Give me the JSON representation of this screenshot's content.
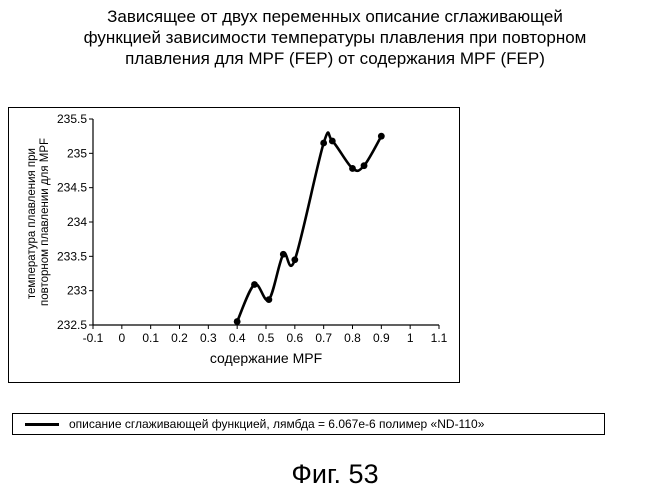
{
  "title_lines": [
    "Зависящее от двух переменных описание сглаживающей",
    "функцией зависимости температуры плавления при повторном",
    "плавления для MPF (FEP) от содержания MPF (FEP)"
  ],
  "legend_label": "описание сглаживающей функцией, лямбда = 6.067e-6 полимер «ND-110»",
  "caption": "Фиг. 53",
  "chart_data": {
    "type": "line",
    "title": "Зависящее от двух переменных описание сглаживающей функцией зависимости температуры плавления при повторном плавления для MPF (FEP) от содержания MPF (FEP)",
    "xlabel": "содержание MPF",
    "ylabel": "температура плавления при повторном плавлении для MPF",
    "xlim": [
      -0.1,
      1.1
    ],
    "ylim": [
      232.5,
      235.5
    ],
    "x_ticks": [
      "-0.1",
      "0",
      "0.1",
      "0.2",
      "0.3",
      "0.4",
      "0.5",
      "0.6",
      "0.7",
      "0.8",
      "0.9",
      "1",
      "1.1"
    ],
    "y_ticks": [
      "232.5",
      "233",
      "233.5",
      "234",
      "234.5",
      "235",
      "235.5"
    ],
    "grid": false,
    "legend_position": "bottom",
    "series": [
      {
        "name": "описание сглаживающей функцией, лямбда = 6.067e-6 полимер «ND-110»",
        "color": "#000000",
        "x": [
          0.4,
          0.46,
          0.51,
          0.56,
          0.6,
          0.7,
          0.73,
          0.8,
          0.84,
          0.9
        ],
        "y": [
          232.55,
          233.09,
          232.87,
          233.53,
          233.45,
          235.15,
          235.18,
          234.78,
          234.82,
          235.25
        ]
      }
    ]
  }
}
